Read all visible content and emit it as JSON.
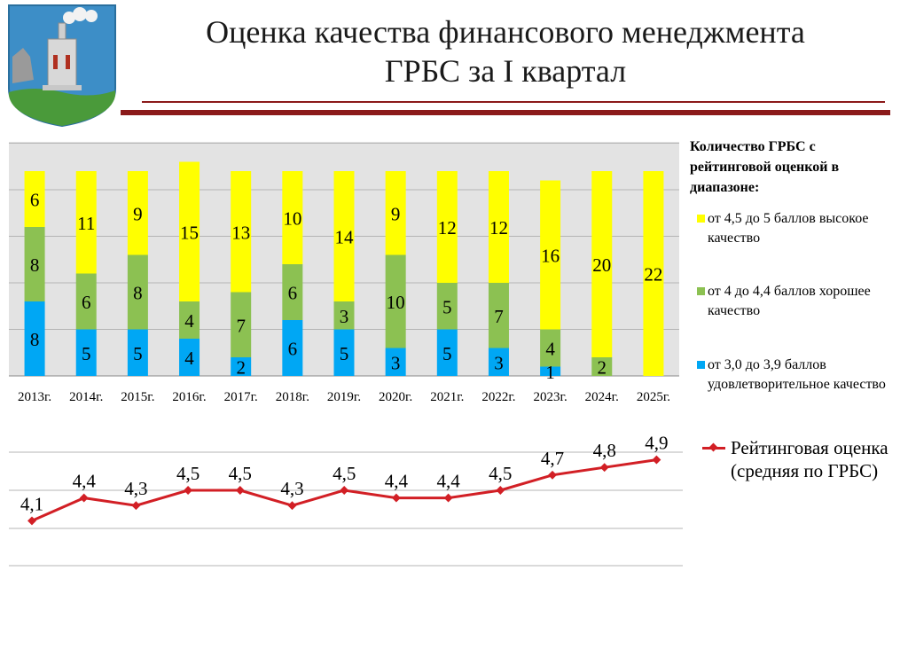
{
  "header": {
    "title_line1": "Оценка качества финансового менеджмента",
    "title_line2": "ГРБС за I квартал"
  },
  "colors": {
    "high": "#ffff00",
    "good": "#8cc152",
    "satisfactory": "#00a7f4",
    "line": "#d21f25",
    "rule": "#8b1a1a",
    "plot_bg": "#e3e3e3"
  },
  "chart_data": [
    {
      "type": "bar",
      "stacked": true,
      "categories": [
        "2013г.",
        "2014г.",
        "2015г.",
        "2016г.",
        "2017г.",
        "2018г.",
        "2019г.",
        "2020г.",
        "2021г.",
        "2022г.",
        "2023г.",
        "2024г.",
        "2025г."
      ],
      "series": [
        {
          "name": "от 3,0 до 3,9 баллов удовлетворительное качество",
          "color": "#00a7f4",
          "values": [
            8,
            5,
            5,
            4,
            2,
            6,
            5,
            3,
            5,
            3,
            1,
            0,
            0
          ]
        },
        {
          "name": "от 4 до 4,4 баллов хорошее качество",
          "color": "#8cc152",
          "values": [
            8,
            6,
            8,
            4,
            7,
            6,
            3,
            10,
            5,
            7,
            4,
            2,
            0
          ]
        },
        {
          "name": "от 4,5 до 5 баллов высокое качество",
          "color": "#ffff00",
          "values": [
            6,
            11,
            9,
            15,
            13,
            10,
            14,
            9,
            12,
            12,
            16,
            20,
            22
          ]
        }
      ],
      "legend_title": "Количество ГРБС с рейтинговой оценкой в диапазоне:",
      "legend_position": "right",
      "grid": true
    },
    {
      "type": "line",
      "categories": [
        "2013г.",
        "2014г.",
        "2015г.",
        "2016г.",
        "2017г.",
        "2018г.",
        "2019г.",
        "2020г.",
        "2021г.",
        "2022г.",
        "2023г.",
        "2024г.",
        "2025г."
      ],
      "series": [
        {
          "name": "Рейтинговая оценка (средняя по ГРБС)",
          "color": "#d21f25",
          "values": [
            4.1,
            4.4,
            4.3,
            4.5,
            4.5,
            4.3,
            4.5,
            4.4,
            4.4,
            4.5,
            4.7,
            4.8,
            4.9
          ]
        }
      ],
      "data_labels": [
        "4,1",
        "4,4",
        "4,3",
        "4,5",
        "4,5",
        "4,3",
        "4,5",
        "4,4",
        "4,4",
        "4,5",
        "4,7",
        "4,8",
        "4,9"
      ],
      "legend_position": "right",
      "grid": true
    }
  ]
}
